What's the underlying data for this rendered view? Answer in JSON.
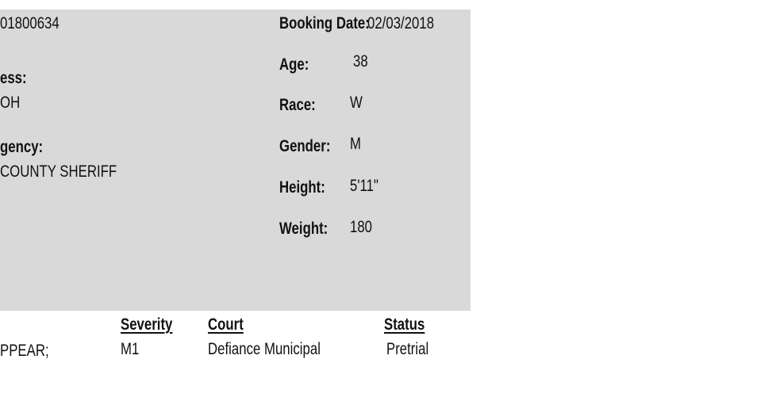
{
  "left": {
    "id_value": "01800634",
    "address_label": "ess:",
    "address_value": "OH",
    "agency_label": "gency:",
    "agency_value": "COUNTY SHERIFF"
  },
  "right": {
    "booking_date_label": "Booking  Date:",
    "booking_date_value": "02/03/2018",
    "age_label": "Age:",
    "age_value": "38",
    "race_label": "Race:",
    "race_value": "W",
    "gender_label": "Gender:",
    "gender_value": "M",
    "height_label": "Height:",
    "height_value": "5'11\"",
    "weight_label": "Weight:",
    "weight_value": "180"
  },
  "charges": {
    "headers": {
      "severity": "Severity",
      "court": "Court",
      "status": "Status"
    },
    "rows": [
      {
        "charge": "PPEAR;",
        "severity": "M1",
        "court": "Defiance Municipal",
        "status": "Pretrial"
      }
    ]
  }
}
